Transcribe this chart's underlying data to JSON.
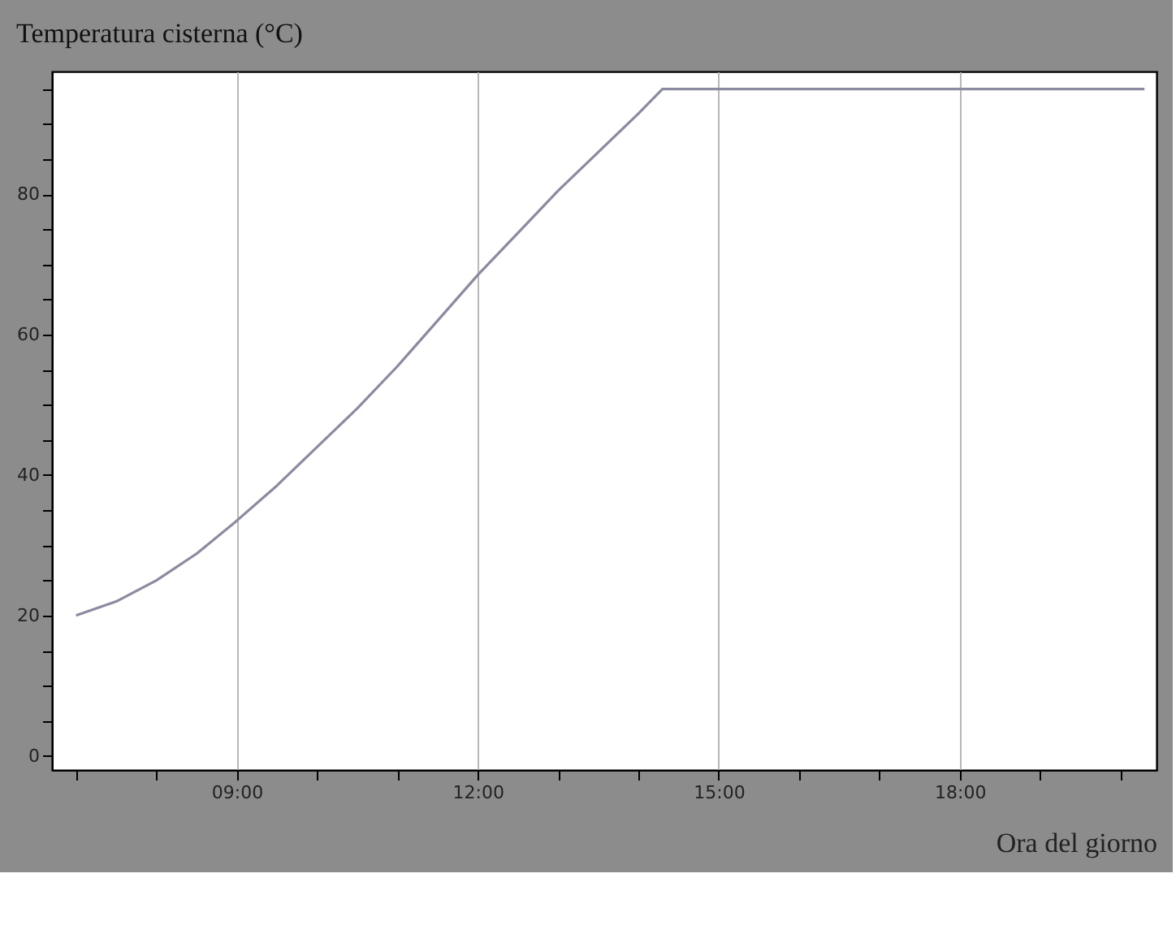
{
  "chart_data": {
    "type": "line",
    "title": "Temperatura cisterna (°C)",
    "xlabel": "Ora del giorno",
    "x": [
      7.0,
      7.5,
      8.0,
      8.5,
      9.0,
      9.5,
      10.0,
      10.5,
      11.0,
      11.5,
      12.0,
      12.5,
      13.0,
      13.5,
      14.0,
      14.3,
      20.3
    ],
    "series": [
      {
        "color": "#8a8aa0",
        "values": [
          20,
          22,
          25,
          28.8,
          33.5,
          38.5,
          44,
          49.5,
          55.5,
          62,
          68.5,
          74.5,
          80.5,
          86,
          91.5,
          95,
          95
        ]
      }
    ],
    "xlim": [
      6.7,
      20.45
    ],
    "xticks": [
      {
        "value": 7,
        "label": null
      },
      {
        "value": 8,
        "label": null
      },
      {
        "value": 9,
        "label": "09:00"
      },
      {
        "value": 10,
        "label": null
      },
      {
        "value": 11,
        "label": null
      },
      {
        "value": 12,
        "label": "12:00"
      },
      {
        "value": 13,
        "label": null
      },
      {
        "value": 14,
        "label": null
      },
      {
        "value": 15,
        "label": "15:00"
      },
      {
        "value": 16,
        "label": null
      },
      {
        "value": 17,
        "label": null
      },
      {
        "value": 18,
        "label": "18:00"
      },
      {
        "value": 19,
        "label": null
      },
      {
        "value": 20,
        "label": null
      }
    ],
    "ylim": [
      -2,
      97.5
    ],
    "yticks": [
      0,
      {
        "value": 5,
        "label": null
      },
      {
        "value": 10,
        "label": null
      },
      {
        "value": 15,
        "label": null
      },
      20,
      {
        "value": 25,
        "label": null
      },
      {
        "value": 30,
        "label": null
      },
      {
        "value": 35,
        "label": null
      },
      40,
      {
        "value": 45,
        "label": null
      },
      {
        "value": 50,
        "label": null
      },
      {
        "value": 55,
        "label": null
      },
      60,
      {
        "value": 65,
        "label": null
      },
      {
        "value": 70,
        "label": null
      },
      {
        "value": 75,
        "label": null
      },
      80,
      {
        "value": 85,
        "label": null
      },
      {
        "value": 90,
        "label": null
      },
      {
        "value": 95,
        "label": null
      }
    ],
    "grid": "x",
    "marker": "none",
    "line_style": "solid"
  }
}
